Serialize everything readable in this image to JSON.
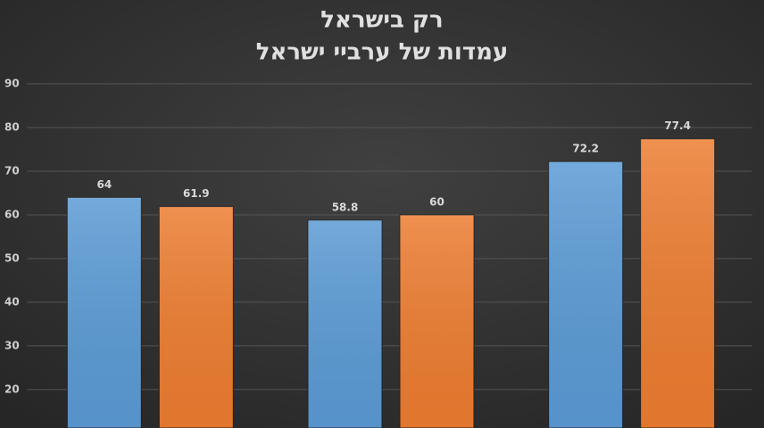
{
  "chart_data": {
    "type": "bar",
    "title": "רק בישראל",
    "subtitle": "עמדות של ערביי ישראל",
    "categories": [
      null,
      null,
      null
    ],
    "series": [
      {
        "color": "#5b9bd5",
        "values": [
          64,
          58.8,
          72.2
        ]
      },
      {
        "color": "#ed7d31",
        "values": [
          61.9,
          60,
          77.4
        ]
      }
    ],
    "ylim": [
      11.2,
      90
    ],
    "yticks": [
      20,
      30,
      40,
      50,
      60,
      70,
      80,
      90
    ],
    "grid": true
  }
}
